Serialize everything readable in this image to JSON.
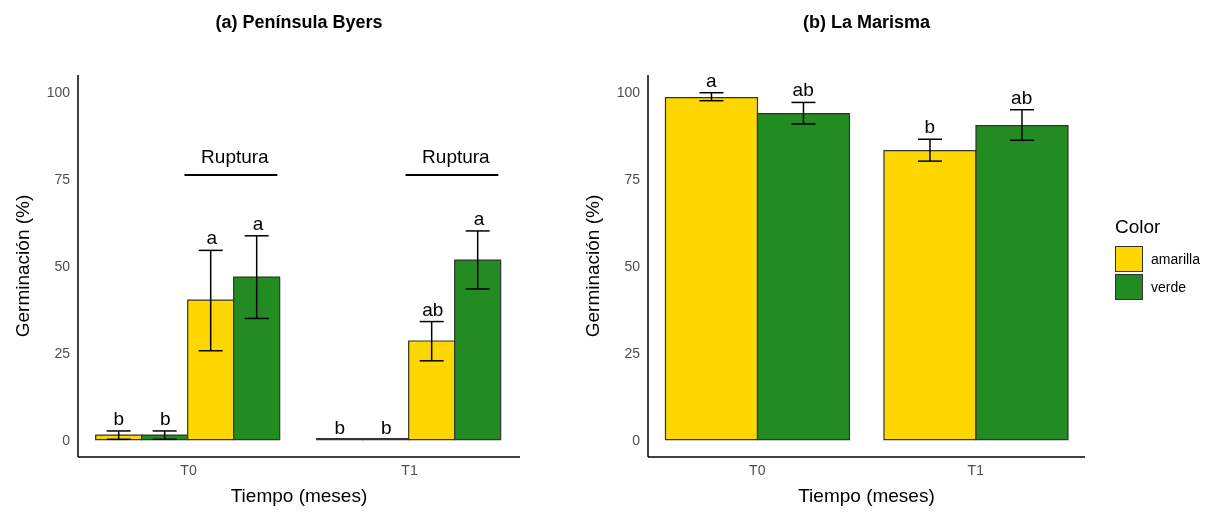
{
  "chart_data": [
    {
      "type": "bar",
      "title": "(a) Península Byers",
      "xlabel": "Tiempo (meses)",
      "ylabel": "Germinación (%)",
      "categories": [
        "T0",
        "T1"
      ],
      "ylim": [
        -5,
        105
      ],
      "yticks": [
        0,
        25,
        50,
        75,
        100
      ],
      "legend": false,
      "annotations": [
        "Ruptura",
        "Ruptura"
      ],
      "series": [
        {
          "color": "#ffd700",
          "values": [
            1.3,
            0
          ],
          "errors": [
            1.2,
            null
          ],
          "value_labels": [
            "b",
            "b"
          ]
        },
        {
          "color": "#228b22",
          "values": [
            1.3,
            0
          ],
          "errors": [
            1.2,
            null
          ],
          "value_labels": [
            "b",
            "b"
          ]
        },
        {
          "color": "#ffd700",
          "values": [
            40.2,
            28.4
          ],
          "errors": [
            [
              25.6,
              54.5
            ],
            [
              22.7,
              34
            ]
          ],
          "value_labels": [
            "a",
            "ab"
          ]
        },
        {
          "color": "#228b22",
          "values": [
            46.8,
            51.7
          ],
          "errors": [
            [
              34.9,
              58.7
            ],
            [
              43.4,
              60.1
            ]
          ],
          "value_labels": [
            "a",
            "a"
          ]
        }
      ]
    },
    {
      "type": "bar",
      "title": "(b) La Marisma",
      "xlabel": "Tiempo (meses)",
      "ylabel": "Germinación (%)",
      "categories": [
        "T0",
        "T1"
      ],
      "ylim": [
        -5,
        105
      ],
      "yticks": [
        0,
        25,
        50,
        75,
        100
      ],
      "legend": "right",
      "legend_title": "Color",
      "series": [
        {
          "name": "amarilla",
          "color": "#ffd700",
          "values": [
            98.5,
            83.2
          ],
          "errors": [
            [
              97.6,
              99.9
            ],
            [
              80.2,
              86.5
            ]
          ],
          "value_labels": [
            "a",
            "b"
          ]
        },
        {
          "name": "verde",
          "color": "#228b22",
          "values": [
            93.9,
            90.4
          ],
          "errors": [
            [
              90.9,
              97.1
            ],
            [
              86.2,
              95.0
            ]
          ],
          "value_labels": [
            "ab",
            "ab"
          ]
        }
      ]
    }
  ]
}
